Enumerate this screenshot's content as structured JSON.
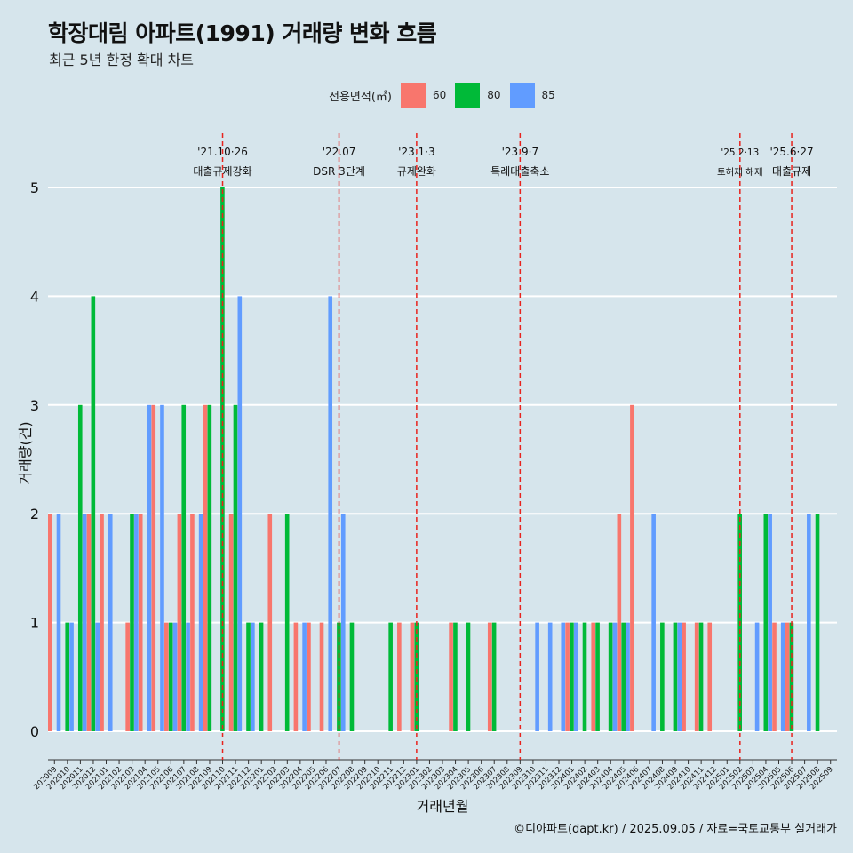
{
  "title": "학장대림 아파트(1991) 거래량 변화 흐름",
  "subtitle": "최근 5년 한정 확대 차트",
  "caption": "©디아파트(dapt.kr) / 2025.09.05 / 자료=국토교통부 실거래가",
  "legend": {
    "title": "전용면적(㎡)",
    "items": [
      {
        "label": "60",
        "color": "#f8766d"
      },
      {
        "label": "80",
        "color": "#00ba38"
      },
      {
        "label": "85",
        "color": "#619cff"
      }
    ]
  },
  "chart_data": {
    "type": "bar",
    "xlabel": "거래년월",
    "ylabel": "거래량(건)",
    "ylim": [
      0,
      5
    ],
    "yticks": [
      0,
      1,
      2,
      3,
      4,
      5
    ],
    "grid": "horizontal",
    "legend_position": "top",
    "categories": [
      "202009",
      "202010",
      "202011",
      "202012",
      "202101",
      "202102",
      "202103",
      "202104",
      "202105",
      "202106",
      "202107",
      "202108",
      "202109",
      "202110",
      "202111",
      "202112",
      "202201",
      "202202",
      "202203",
      "202204",
      "202205",
      "202206",
      "202207",
      "202208",
      "202209",
      "202210",
      "202211",
      "202212",
      "202301",
      "202302",
      "202303",
      "202304",
      "202305",
      "202306",
      "202307",
      "202308",
      "202309",
      "202310",
      "202311",
      "202312",
      "202401",
      "202402",
      "202403",
      "202404",
      "202405",
      "202406",
      "202407",
      "202408",
      "202409",
      "202410",
      "202411",
      "202412",
      "202501",
      "202502",
      "202503",
      "202504",
      "202505",
      "202506",
      "202507",
      "202508",
      "202509"
    ],
    "series": [
      {
        "name": "60",
        "color": "#f8766d",
        "values": [
          2,
          0,
          0,
          2,
          2,
          0,
          1,
          2,
          3,
          1,
          2,
          2,
          3,
          0,
          2,
          0,
          0,
          2,
          0,
          1,
          1,
          1,
          0,
          0,
          0,
          0,
          0,
          1,
          1,
          0,
          0,
          1,
          0,
          0,
          1,
          0,
          0,
          0,
          0,
          0,
          1,
          0,
          1,
          0,
          2,
          3,
          0,
          0,
          0,
          1,
          1,
          1,
          0,
          0,
          0,
          0,
          1,
          1,
          0,
          0,
          0
        ]
      },
      {
        "name": "80",
        "color": "#00ba38",
        "values": [
          0,
          1,
          3,
          4,
          0,
          0,
          2,
          0,
          0,
          1,
          3,
          0,
          3,
          5,
          3,
          1,
          1,
          0,
          2,
          0,
          0,
          0,
          1,
          1,
          0,
          0,
          1,
          0,
          1,
          0,
          0,
          1,
          1,
          0,
          1,
          0,
          0,
          0,
          0,
          0,
          1,
          1,
          1,
          1,
          1,
          0,
          0,
          1,
          1,
          0,
          1,
          0,
          0,
          2,
          0,
          2,
          0,
          1,
          0,
          2,
          0
        ]
      },
      {
        "name": "85",
        "color": "#619cff",
        "values": [
          2,
          1,
          2,
          1,
          2,
          0,
          2,
          3,
          3,
          1,
          1,
          2,
          0,
          0,
          4,
          1,
          0,
          0,
          0,
          1,
          0,
          4,
          2,
          0,
          0,
          0,
          0,
          0,
          0,
          0,
          0,
          0,
          0,
          0,
          0,
          0,
          0,
          1,
          1,
          1,
          1,
          0,
          0,
          1,
          1,
          0,
          2,
          0,
          1,
          0,
          0,
          0,
          0,
          0,
          1,
          2,
          1,
          0,
          2,
          0,
          0
        ]
      }
    ],
    "annotations": [
      {
        "date": "'21.10·26",
        "label": "대출규제강화",
        "at": "202110"
      },
      {
        "date": "'22.07",
        "label": "DSR 3단계",
        "at": "202207"
      },
      {
        "date": "'23.1·3",
        "label": "규제완화",
        "at": "202301"
      },
      {
        "date": "'23.9·7",
        "label": "특례대출축소",
        "at": "202309"
      },
      {
        "date": "'25.2·13",
        "label": "토허제 해제",
        "at": "202502"
      },
      {
        "date": "'25.6·27",
        "label": "대출규제",
        "at": "202506"
      }
    ]
  }
}
